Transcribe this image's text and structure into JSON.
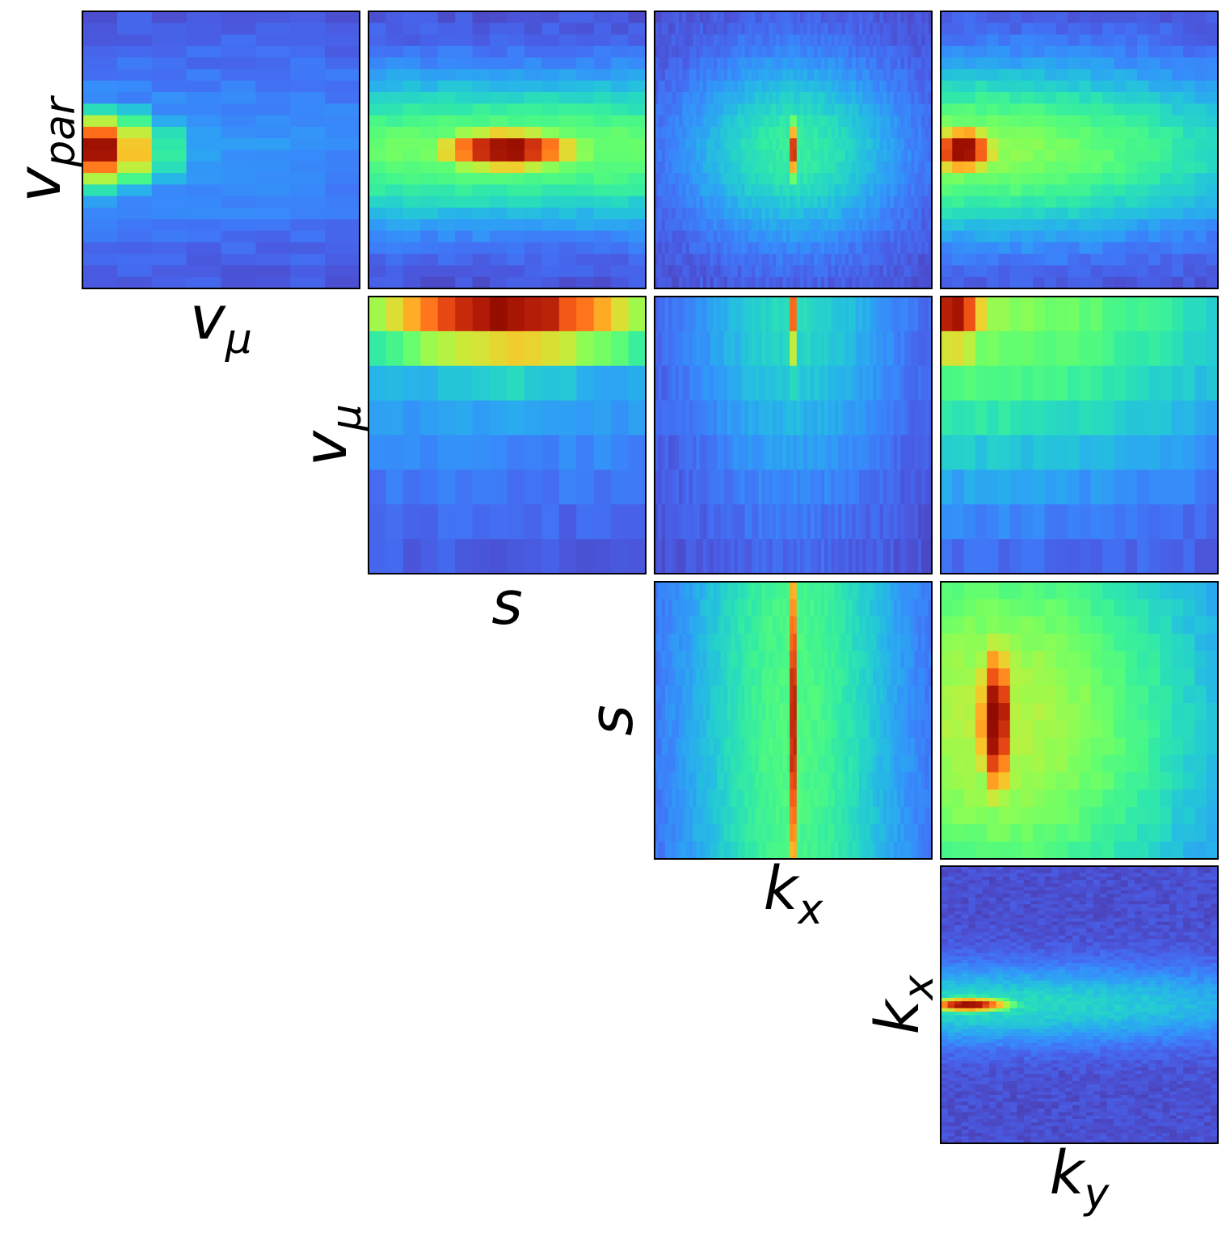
{
  "chart_data": {
    "type": "heatmap",
    "title": "",
    "variables": [
      "v_par",
      "v_mu",
      "s",
      "k_x",
      "k_y"
    ],
    "colormap": "turbo",
    "grid": false,
    "axis_labels": {
      "v_par": {
        "base": "v",
        "sub": "par"
      },
      "v_mu": {
        "base": "v",
        "sub": "μ"
      },
      "s": {
        "base": "s",
        "sub": ""
      },
      "k_x": {
        "base": "k",
        "sub": "x"
      },
      "k_y": {
        "base": "k",
        "sub": "y"
      }
    },
    "panels": [
      {
        "row": 0,
        "col": 0,
        "x": "v_mu",
        "y": "v_par",
        "nx": 8,
        "ny": 24,
        "peak_x": 0.0,
        "peak_y": 0.5,
        "sigma_x": 0.2,
        "sigma_y": 0.09,
        "floor": 0.05,
        "halo": 0.12
      },
      {
        "row": 0,
        "col": 1,
        "x": "s",
        "y": "v_par",
        "nx": 16,
        "ny": 24,
        "peak_x": 0.5,
        "peak_y": 0.5,
        "sigma_x": 0.22,
        "sigma_y": 0.06,
        "floor": 0.05,
        "halo": 0.4
      },
      {
        "row": 0,
        "col": 2,
        "x": "k_x",
        "y": "v_par",
        "nx": 80,
        "ny": 24,
        "peak_x": 0.5,
        "peak_y": 0.5,
        "sigma_x": 0.012,
        "sigma_y": 0.08,
        "floor": 0.05,
        "halo": 0.3
      },
      {
        "row": 0,
        "col": 3,
        "x": "k_y",
        "y": "v_par",
        "nx": 24,
        "ny": 24,
        "peak_x": 0.08,
        "peak_y": 0.5,
        "sigma_x": 0.1,
        "sigma_y": 0.07,
        "floor": 0.05,
        "halo": 0.45
      },
      {
        "row": 1,
        "col": 1,
        "x": "s",
        "y": "v_mu",
        "nx": 16,
        "ny": 8,
        "peak_x": 0.5,
        "peak_y": 0.0,
        "sigma_x": 0.4,
        "sigma_y": 0.18,
        "floor": 0.05,
        "halo": 0.2
      },
      {
        "row": 1,
        "col": 2,
        "x": "k_x",
        "y": "v_mu",
        "nx": 80,
        "ny": 8,
        "peak_x": 0.5,
        "peak_y": 0.0,
        "sigma_x": 0.01,
        "sigma_y": 0.2,
        "floor": 0.05,
        "halo": 0.25
      },
      {
        "row": 1,
        "col": 3,
        "x": "k_y",
        "y": "v_mu",
        "nx": 24,
        "ny": 8,
        "peak_x": 0.05,
        "peak_y": 0.0,
        "sigma_x": 0.1,
        "sigma_y": 0.18,
        "floor": 0.05,
        "halo": 0.45
      },
      {
        "row": 2,
        "col": 2,
        "x": "k_x",
        "y": "s",
        "nx": 80,
        "ny": 16,
        "peak_x": 0.5,
        "peak_y": 0.5,
        "sigma_x": 0.012,
        "sigma_y": 0.6,
        "floor": 0.05,
        "halo": 0.35
      },
      {
        "row": 2,
        "col": 3,
        "x": "k_y",
        "y": "s",
        "nx": 24,
        "ny": 16,
        "peak_x": 0.2,
        "peak_y": 0.5,
        "sigma_x": 0.06,
        "sigma_y": 0.25,
        "floor": 0.05,
        "halo": 0.5
      },
      {
        "row": 3,
        "col": 3,
        "x": "k_y",
        "y": "k_x",
        "nx": 40,
        "ny": 80,
        "peak_x": 0.1,
        "peak_y": 0.5,
        "sigma_x": 0.12,
        "sigma_y": 0.02,
        "floor": 0.05,
        "halo": 0.25
      }
    ],
    "xlabel_panels": [
      {
        "row": 0,
        "col": 0,
        "var": "v_mu"
      },
      {
        "row": 1,
        "col": 1,
        "var": "s"
      },
      {
        "row": 2,
        "col": 2,
        "var": "k_x"
      },
      {
        "row": 3,
        "col": 3,
        "var": "k_y"
      }
    ],
    "ylabel_panels": [
      {
        "row": 0,
        "col": 0,
        "var": "v_par"
      },
      {
        "row": 1,
        "col": 1,
        "var": "v_mu"
      },
      {
        "row": 2,
        "col": 2,
        "var": "s"
      },
      {
        "row": 3,
        "col": 3,
        "var": "k_x"
      }
    ]
  }
}
